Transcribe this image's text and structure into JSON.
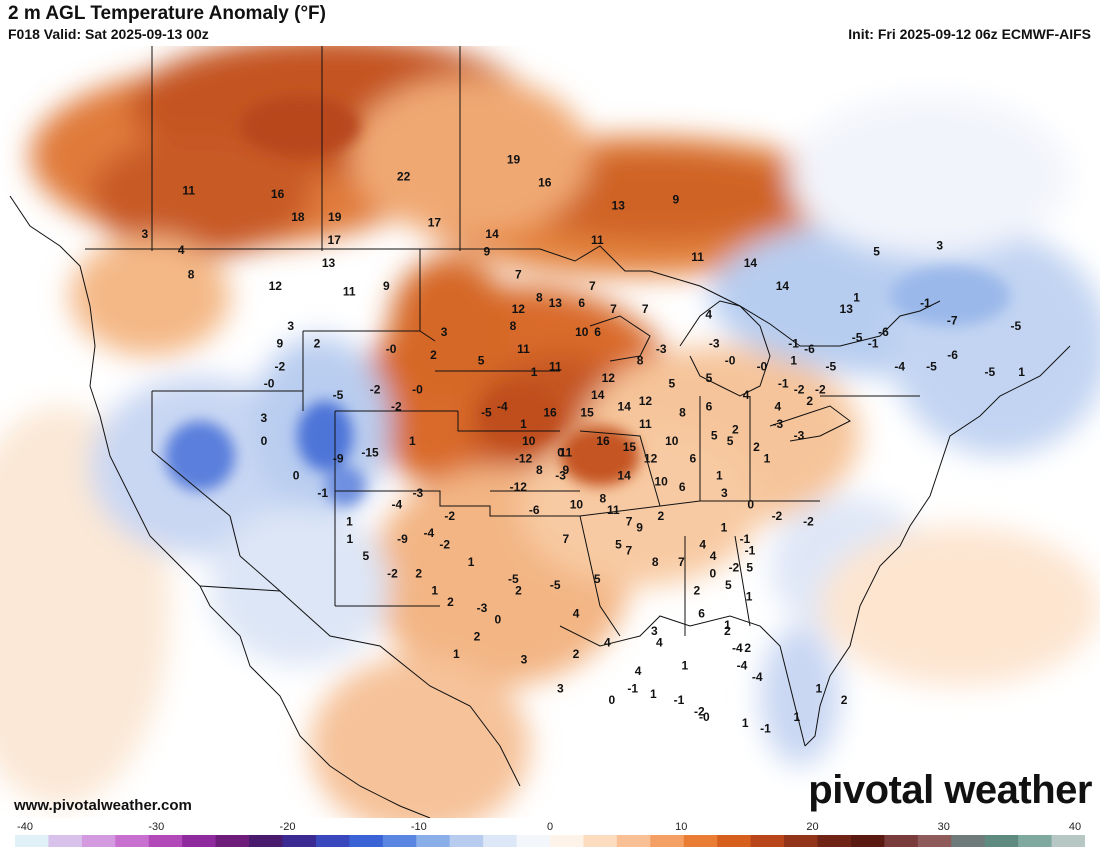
{
  "header": {
    "title": "2 m AGL Temperature Anomaly (°F)",
    "subtitle": "F018 Valid: Sat 2025-09-13 00z",
    "init": "Init: Fri 2025-09-12 06z ECMWF-AIFS"
  },
  "footer": {
    "website": "www.pivotalweather.com",
    "brand": "pivotal weather"
  },
  "legend": {
    "ticks": [
      "-40",
      "-30",
      "-20",
      "-10",
      "0",
      "10",
      "20",
      "30",
      "40"
    ],
    "colors": [
      "#e0f2f7",
      "#d8c2ec",
      "#d49ae0",
      "#c870cf",
      "#b249b8",
      "#8f2a9e",
      "#6e1d7a",
      "#4a1a6e",
      "#3b2a92",
      "#3948bd",
      "#3a63d6",
      "#5a85e0",
      "#8aaee8",
      "#b7ccef",
      "#dce7f7",
      "#f3f6fb",
      "#fdf3e8",
      "#fbdcbf",
      "#f8c094",
      "#f4a064",
      "#ea7d34",
      "#d65f1d",
      "#b8461a",
      "#913419",
      "#6f2416",
      "#5a1a12",
      "#7a3b3b",
      "#8e5a5a",
      "#6f7a7a",
      "#5e8a80",
      "#7fa99f",
      "#b7c7c4"
    ]
  },
  "chart_data": {
    "type": "map",
    "title": "2 m AGL Temperature Anomaly (°F)",
    "colorbar_range": [
      -40,
      40
    ],
    "points": [
      {
        "label": "11",
        "lon": -131.5,
        "lat": 57.8
      },
      {
        "label": "3",
        "lon": -135.5,
        "lat": 54.0
      },
      {
        "label": "4",
        "lon": -132.0,
        "lat": 52.6
      },
      {
        "label": "8",
        "lon": -131.0,
        "lat": 50.5
      },
      {
        "label": "16",
        "lon": -123.0,
        "lat": 57.5
      },
      {
        "label": "18",
        "lon": -121.0,
        "lat": 55.5
      },
      {
        "label": "19",
        "lon": -117.5,
        "lat": 55.5
      },
      {
        "label": "17",
        "lon": -117.5,
        "lat": 53.5
      },
      {
        "label": "13",
        "lon": -118.0,
        "lat": 51.5
      },
      {
        "label": "12",
        "lon": -123.0,
        "lat": 49.5
      },
      {
        "label": "11",
        "lon": -116.0,
        "lat": 49.0
      },
      {
        "label": "9",
        "lon": -112.5,
        "lat": 49.5
      },
      {
        "label": "22",
        "lon": -111.0,
        "lat": 59.0
      },
      {
        "label": "19",
        "lon": -100.5,
        "lat": 60.5
      },
      {
        "label": "16",
        "lon": -97.5,
        "lat": 58.5
      },
      {
        "label": "17",
        "lon": -108.0,
        "lat": 55.0
      },
      {
        "label": "14",
        "lon": -102.5,
        "lat": 54.0
      },
      {
        "label": "9",
        "lon": -103.0,
        "lat": 52.5
      },
      {
        "label": "7",
        "lon": -100.0,
        "lat": 50.5
      },
      {
        "label": "13",
        "lon": -90.5,
        "lat": 56.5
      },
      {
        "label": "9",
        "lon": -85.0,
        "lat": 57.0
      },
      {
        "label": "11",
        "lon": -92.5,
        "lat": 53.5
      },
      {
        "label": "11",
        "lon": -83.0,
        "lat": 52.0
      },
      {
        "label": "14",
        "lon": -78.0,
        "lat": 51.5
      },
      {
        "label": "14",
        "lon": -75.0,
        "lat": 49.5
      },
      {
        "label": "13",
        "lon": -69.0,
        "lat": 47.5
      },
      {
        "label": "7",
        "lon": -91.0,
        "lat": 47.5
      },
      {
        "label": "7",
        "lon": -88.0,
        "lat": 47.5
      },
      {
        "label": "4",
        "lon": -82.0,
        "lat": 47.0
      },
      {
        "label": "5",
        "lon": -66.0,
        "lat": 52.5
      },
      {
        "label": "3",
        "lon": -60.0,
        "lat": 53.0
      },
      {
        "label": "1",
        "lon": -68.0,
        "lat": 48.5
      },
      {
        "label": "-1",
        "lon": -61.5,
        "lat": 48.0
      },
      {
        "label": "-6",
        "lon": -65.5,
        "lat": 45.5
      },
      {
        "label": "-7",
        "lon": -59.0,
        "lat": 46.5
      },
      {
        "label": "-5",
        "lon": -53.0,
        "lat": 46.0
      },
      {
        "label": "-6",
        "lon": -59.0,
        "lat": 43.5
      },
      {
        "label": "-4",
        "lon": -64.0,
        "lat": 42.5
      },
      {
        "label": "-5",
        "lon": -61.0,
        "lat": 42.5
      },
      {
        "label": "-5",
        "lon": -55.5,
        "lat": 42.0
      },
      {
        "label": "1",
        "lon": -52.5,
        "lat": 42.0
      },
      {
        "label": "-1",
        "lon": -74.0,
        "lat": 44.5
      },
      {
        "label": "1",
        "lon": -74.0,
        "lat": 43.0
      },
      {
        "label": "-3",
        "lon": -81.5,
        "lat": 44.5
      },
      {
        "label": "-3",
        "lon": -86.5,
        "lat": 44.0
      },
      {
        "label": "3",
        "lon": -121.5,
        "lat": 46.0
      },
      {
        "label": "9",
        "lon": -122.5,
        "lat": 44.5
      },
      {
        "label": "2",
        "lon": -119.0,
        "lat": 44.5
      },
      {
        "label": "-2",
        "lon": -122.5,
        "lat": 42.5
      },
      {
        "label": "-0",
        "lon": -123.5,
        "lat": 41.0
      },
      {
        "label": "3",
        "lon": -124.0,
        "lat": 38.0
      },
      {
        "label": "0",
        "lon": -124.0,
        "lat": 36.0
      },
      {
        "label": "0",
        "lon": -121.0,
        "lat": 33.0
      },
      {
        "label": "-1",
        "lon": -118.5,
        "lat": 31.5
      },
      {
        "label": "1",
        "lon": -116.0,
        "lat": 29.0
      },
      {
        "label": "1",
        "lon": -116.0,
        "lat": 27.5
      },
      {
        "label": "5",
        "lon": -114.5,
        "lat": 26.0
      },
      {
        "label": "-2",
        "lon": -112.0,
        "lat": 24.5
      },
      {
        "label": "2",
        "lon": -109.5,
        "lat": 24.5
      },
      {
        "label": "-9",
        "lon": -117.0,
        "lat": 34.5
      },
      {
        "label": "-15",
        "lon": -114.0,
        "lat": 35.0
      },
      {
        "label": "-5",
        "lon": -117.0,
        "lat": 40.0
      },
      {
        "label": "-2",
        "lon": -113.5,
        "lat": 40.5
      },
      {
        "label": "-2",
        "lon": -111.5,
        "lat": 39.0
      },
      {
        "label": "-0",
        "lon": -109.5,
        "lat": 40.5
      },
      {
        "label": "-0",
        "lon": -112.0,
        "lat": 44.0
      },
      {
        "label": "2",
        "lon": -108.0,
        "lat": 43.5
      },
      {
        "label": "3",
        "lon": -107.0,
        "lat": 45.5
      },
      {
        "label": "5",
        "lon": -103.5,
        "lat": 43.0
      },
      {
        "label": "8",
        "lon": -100.5,
        "lat": 46.0
      },
      {
        "label": "-5",
        "lon": -103.0,
        "lat": 38.5
      },
      {
        "label": "-4",
        "lon": -101.5,
        "lat": 39.0
      },
      {
        "label": "1",
        "lon": -98.5,
        "lat": 42.0
      },
      {
        "label": "1",
        "lon": -99.5,
        "lat": 37.5
      },
      {
        "label": "1",
        "lon": -110.0,
        "lat": 36.0
      },
      {
        "label": "-12",
        "lon": -99.5,
        "lat": 34.5
      },
      {
        "label": "-3",
        "lon": -109.5,
        "lat": 31.5
      },
      {
        "label": "-12",
        "lon": -100.0,
        "lat": 32.0
      },
      {
        "label": "-6",
        "lon": -98.5,
        "lat": 30.0
      },
      {
        "label": "0",
        "lon": -96.0,
        "lat": 35.0
      },
      {
        "label": "-3",
        "lon": -96.0,
        "lat": 33.0
      },
      {
        "label": "-4",
        "lon": -111.5,
        "lat": 30.5
      },
      {
        "label": "-2",
        "lon": -106.5,
        "lat": 29.5
      },
      {
        "label": "-4",
        "lon": -108.5,
        "lat": 28.0
      },
      {
        "label": "-2",
        "lon": -107.0,
        "lat": 27.0
      },
      {
        "label": "1",
        "lon": -104.5,
        "lat": 25.5
      },
      {
        "label": "-5",
        "lon": -100.5,
        "lat": 24.0
      },
      {
        "label": "-5",
        "lon": -96.5,
        "lat": 23.5
      },
      {
        "label": "-9",
        "lon": -111.0,
        "lat": 27.5
      },
      {
        "label": "1",
        "lon": -108.0,
        "lat": 23.0
      },
      {
        "label": "-3",
        "lon": -103.5,
        "lat": 21.5
      },
      {
        "label": "0",
        "lon": -102.0,
        "lat": 20.5
      },
      {
        "label": "2",
        "lon": -100.0,
        "lat": 23.0
      },
      {
        "label": "4",
        "lon": -94.5,
        "lat": 21.0
      },
      {
        "label": "5",
        "lon": -92.5,
        "lat": 24.0
      },
      {
        "label": "5",
        "lon": -90.5,
        "lat": 27.0
      },
      {
        "label": "7",
        "lon": -89.5,
        "lat": 29.0
      },
      {
        "label": "7",
        "lon": -89.5,
        "lat": 26.5
      },
      {
        "label": "8",
        "lon": -87.0,
        "lat": 25.5
      },
      {
        "label": "7",
        "lon": -84.5,
        "lat": 25.5
      },
      {
        "label": "2",
        "lon": -83.0,
        "lat": 23.0
      },
      {
        "label": "5",
        "lon": -80.0,
        "lat": 23.5
      },
      {
        "label": "6",
        "lon": -82.5,
        "lat": 21.0
      },
      {
        "label": "5",
        "lon": -78.0,
        "lat": 25.0
      },
      {
        "label": "4",
        "lon": -91.5,
        "lat": 18.5
      },
      {
        "label": "2",
        "lon": -94.5,
        "lat": 17.5
      },
      {
        "label": "4",
        "lon": -86.5,
        "lat": 18.5
      },
      {
        "label": "4",
        "lon": -88.5,
        "lat": 16.0
      },
      {
        "label": "3",
        "lon": -87.0,
        "lat": 19.5
      },
      {
        "label": "2",
        "lon": -80.0,
        "lat": 19.5
      },
      {
        "label": "2",
        "lon": -78.0,
        "lat": 18.0
      },
      {
        "label": "1",
        "lon": -84.0,
        "lat": 16.5
      },
      {
        "label": "1",
        "lon": -87.0,
        "lat": 14.0
      },
      {
        "label": "-1",
        "lon": -84.5,
        "lat": 13.5
      },
      {
        "label": "-2",
        "lon": -82.5,
        "lat": 12.5
      },
      {
        "label": "0",
        "lon": -91.0,
        "lat": 13.5
      },
      {
        "label": "-1",
        "lon": -89.0,
        "lat": 14.5
      },
      {
        "label": "3",
        "lon": -96.0,
        "lat": 14.5
      },
      {
        "label": "3",
        "lon": -99.5,
        "lat": 17.0
      },
      {
        "label": "2",
        "lon": -104.0,
        "lat": 19.0
      },
      {
        "label": "1",
        "lon": -106.0,
        "lat": 17.5
      },
      {
        "label": "2",
        "lon": -106.5,
        "lat": 22.0
      },
      {
        "label": "-0",
        "lon": -82.0,
        "lat": 12.0
      },
      {
        "label": "13",
        "lon": -96.5,
        "lat": 48.0
      },
      {
        "label": "8",
        "lon": -98.0,
        "lat": 48.5
      },
      {
        "label": "12",
        "lon": -100.0,
        "lat": 47.5
      },
      {
        "label": "11",
        "lon": -99.5,
        "lat": 44.0
      },
      {
        "label": "10",
        "lon": -94.0,
        "lat": 45.5
      },
      {
        "label": "11",
        "lon": -96.5,
        "lat": 42.5
      },
      {
        "label": "12",
        "lon": -91.5,
        "lat": 41.5
      },
      {
        "label": "6",
        "lon": -92.5,
        "lat": 45.5
      },
      {
        "label": "8",
        "lon": -88.5,
        "lat": 43.0
      },
      {
        "label": "6",
        "lon": -94.0,
        "lat": 48.0
      },
      {
        "label": "7",
        "lon": -93.0,
        "lat": 49.5
      },
      {
        "label": "16",
        "lon": -97.0,
        "lat": 38.5
      },
      {
        "label": "15",
        "lon": -93.5,
        "lat": 38.5
      },
      {
        "label": "14",
        "lon": -92.5,
        "lat": 40.0
      },
      {
        "label": "14",
        "lon": -90.0,
        "lat": 39.0
      },
      {
        "label": "12",
        "lon": -88.0,
        "lat": 39.5
      },
      {
        "label": "16",
        "lon": -92.0,
        "lat": 36.0
      },
      {
        "label": "15",
        "lon": -89.5,
        "lat": 35.5
      },
      {
        "label": "10",
        "lon": -99.0,
        "lat": 36.0
      },
      {
        "label": "11",
        "lon": -95.5,
        "lat": 35.0
      },
      {
        "label": "9",
        "lon": -95.5,
        "lat": 33.5
      },
      {
        "label": "8",
        "lon": -98.0,
        "lat": 33.5
      },
      {
        "label": "14",
        "lon": -90.0,
        "lat": 33.0
      },
      {
        "label": "12",
        "lon": -87.5,
        "lat": 34.5
      },
      {
        "label": "10",
        "lon": -86.5,
        "lat": 32.5
      },
      {
        "label": "8",
        "lon": -92.0,
        "lat": 31.0
      },
      {
        "label": "10",
        "lon": -94.5,
        "lat": 30.5
      },
      {
        "label": "11",
        "lon": -91.0,
        "lat": 30.0
      },
      {
        "label": "9",
        "lon": -88.5,
        "lat": 28.5
      },
      {
        "label": "7",
        "lon": -95.5,
        "lat": 27.5
      },
      {
        "label": "11",
        "lon": -88.0,
        "lat": 37.5
      },
      {
        "label": "10",
        "lon": -85.5,
        "lat": 36.0
      },
      {
        "label": "8",
        "lon": -84.5,
        "lat": 38.5
      },
      {
        "label": "5",
        "lon": -85.5,
        "lat": 41.0
      },
      {
        "label": "5",
        "lon": -82.0,
        "lat": 41.5
      },
      {
        "label": "6",
        "lon": -82.0,
        "lat": 39.0
      },
      {
        "label": "5",
        "lon": -81.5,
        "lat": 36.5
      },
      {
        "label": "6",
        "lon": -83.5,
        "lat": 34.5
      },
      {
        "label": "5",
        "lon": -80.0,
        "lat": 36.0
      },
      {
        "label": "4",
        "lon": -78.5,
        "lat": 40.0
      },
      {
        "label": "4",
        "lon": -75.5,
        "lat": 39.0
      },
      {
        "label": "2",
        "lon": -72.5,
        "lat": 39.5
      },
      {
        "label": "2",
        "lon": -79.5,
        "lat": 37.0
      },
      {
        "label": "2",
        "lon": -77.5,
        "lat": 35.5
      },
      {
        "label": "1",
        "lon": -76.5,
        "lat": 34.5
      },
      {
        "label": "1",
        "lon": -81.0,
        "lat": 33.0
      },
      {
        "label": "6",
        "lon": -84.5,
        "lat": 32.0
      },
      {
        "label": "3",
        "lon": -80.5,
        "lat": 31.5
      },
      {
        "label": "0",
        "lon": -78.0,
        "lat": 30.5
      },
      {
        "label": "-2",
        "lon": -75.5,
        "lat": 29.5
      },
      {
        "label": "-2",
        "lon": -72.5,
        "lat": 29.0
      },
      {
        "label": "1",
        "lon": -80.5,
        "lat": 28.5
      },
      {
        "label": "-1",
        "lon": -78.5,
        "lat": 27.5
      },
      {
        "label": "-1",
        "lon": -78.0,
        "lat": 26.5
      },
      {
        "label": "-2",
        "lon": -79.5,
        "lat": 25.0
      },
      {
        "label": "4",
        "lon": -82.5,
        "lat": 27.0
      },
      {
        "label": "4",
        "lon": -81.5,
        "lat": 26.0
      },
      {
        "label": "0",
        "lon": -81.5,
        "lat": 24.5
      },
      {
        "label": "1",
        "lon": -78.0,
        "lat": 22.5
      },
      {
        "label": "2",
        "lon": -86.5,
        "lat": 29.5
      },
      {
        "label": "1",
        "lon": -80.0,
        "lat": 20.0
      },
      {
        "label": "-4",
        "lon": -79.0,
        "lat": 18.0
      },
      {
        "label": "-4",
        "lon": -78.5,
        "lat": 16.5
      },
      {
        "label": "-4",
        "lon": -77.0,
        "lat": 15.5
      },
      {
        "label": "1",
        "lon": -71.0,
        "lat": 14.5
      },
      {
        "label": "2",
        "lon": -68.5,
        "lat": 13.5
      },
      {
        "label": "1",
        "lon": -78.0,
        "lat": 11.5
      },
      {
        "label": "-1",
        "lon": -76.0,
        "lat": 11.0
      },
      {
        "label": "1",
        "lon": -73.0,
        "lat": 12.0
      },
      {
        "label": "-1",
        "lon": -75.0,
        "lat": 41.0
      },
      {
        "label": "-2",
        "lon": -73.5,
        "lat": 40.5
      },
      {
        "label": "-2",
        "lon": -71.5,
        "lat": 40.5
      },
      {
        "label": "-3",
        "lon": -75.5,
        "lat": 37.5
      },
      {
        "label": "-3",
        "lon": -73.5,
        "lat": 36.5
      },
      {
        "label": "-5",
        "lon": -70.5,
        "lat": 42.5
      },
      {
        "label": "-6",
        "lon": -72.5,
        "lat": 44.0
      },
      {
        "label": "-5",
        "lon": -68.0,
        "lat": 45.0
      },
      {
        "label": "-1",
        "lon": -66.5,
        "lat": 44.5
      },
      {
        "label": "-0",
        "lon": -77.0,
        "lat": 42.5
      },
      {
        "label": "-0",
        "lon": -80.0,
        "lat": 43.0
      }
    ]
  }
}
